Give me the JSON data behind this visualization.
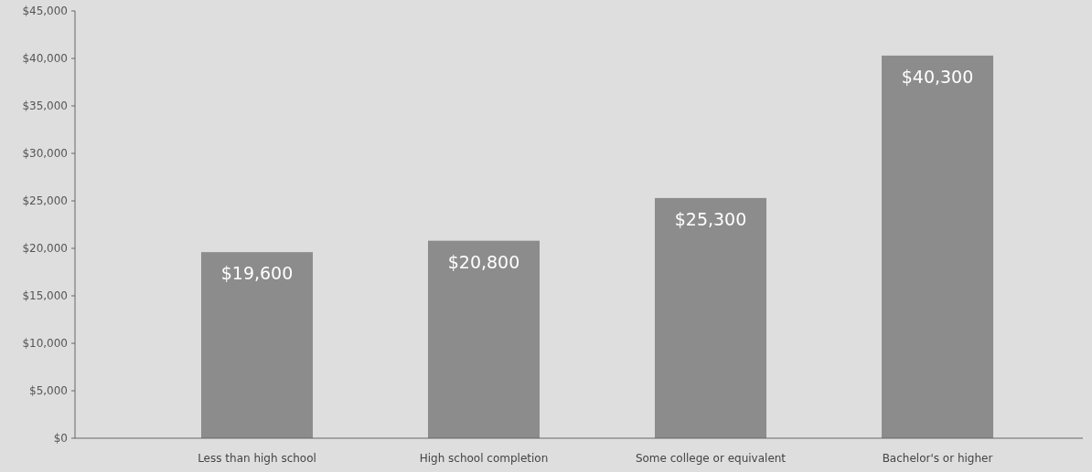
{
  "chart_data": {
    "type": "bar",
    "categories": [
      "Less than high school",
      "High school completion",
      "Some college or equivalent",
      "Bachelor's or higher"
    ],
    "values": [
      19600,
      20800,
      25300,
      40300
    ],
    "value_labels": [
      "$19,600",
      "$20,800",
      "$25,300",
      "$40,300"
    ],
    "color": "#8c8c8c",
    "ylim": [
      0,
      45000
    ],
    "yticks": [
      {
        "value": 0,
        "label": "$0"
      },
      {
        "value": 5000,
        "label": "$5,000"
      },
      {
        "value": 10000,
        "label": "$10,000"
      },
      {
        "value": 15000,
        "label": "$15,000"
      },
      {
        "value": 20000,
        "label": "$20,000"
      },
      {
        "value": 25000,
        "label": "$25,000"
      },
      {
        "value": 30000,
        "label": "$30,000"
      },
      {
        "value": 35000,
        "label": "$35,000"
      },
      {
        "value": 40000,
        "label": "$40,000"
      },
      {
        "value": 45000,
        "label": "$45,000"
      }
    ],
    "grid": false
  }
}
